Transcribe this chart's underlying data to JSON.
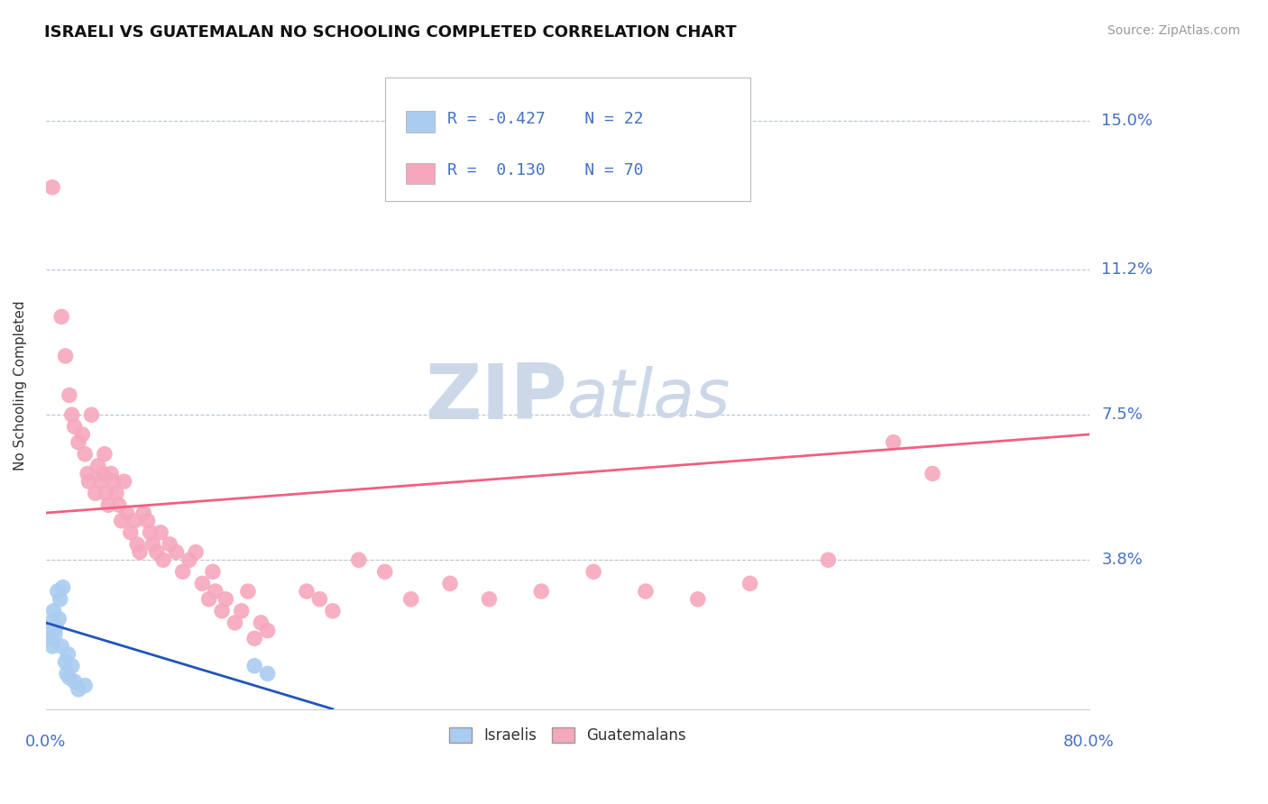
{
  "title": "ISRAELI VS GUATEMALAN NO SCHOOLING COMPLETED CORRELATION CHART",
  "source_text": "Source: ZipAtlas.com",
  "ylabel": "No Schooling Completed",
  "ytick_vals": [
    0.038,
    0.075,
    0.112,
    0.15
  ],
  "ytick_labels": [
    "3.8%",
    "7.5%",
    "11.2%",
    "15.0%"
  ],
  "xlim": [
    0.0,
    0.8
  ],
  "ylim": [
    0.0,
    0.165
  ],
  "legend_r_israeli": "-0.427",
  "legend_n_israeli": "22",
  "legend_r_guatemalan": "0.130",
  "legend_n_guatemalan": "70",
  "israeli_color": "#aaccf0",
  "guatemalan_color": "#f5a8bc",
  "israeli_line_color": "#2255bb",
  "guatemalan_line_color": "#f06080",
  "bg_color": "#ffffff",
  "watermark_color": "#ccd8e8",
  "israelis_dots": [
    [
      0.002,
      0.02
    ],
    [
      0.003,
      0.018
    ],
    [
      0.004,
      0.022
    ],
    [
      0.005,
      0.016
    ],
    [
      0.006,
      0.025
    ],
    [
      0.007,
      0.019
    ],
    [
      0.008,
      0.021
    ],
    [
      0.009,
      0.03
    ],
    [
      0.01,
      0.023
    ],
    [
      0.011,
      0.028
    ],
    [
      0.012,
      0.016
    ],
    [
      0.013,
      0.031
    ],
    [
      0.015,
      0.012
    ],
    [
      0.016,
      0.009
    ],
    [
      0.017,
      0.014
    ],
    [
      0.018,
      0.008
    ],
    [
      0.02,
      0.011
    ],
    [
      0.022,
      0.007
    ],
    [
      0.025,
      0.005
    ],
    [
      0.03,
      0.006
    ],
    [
      0.16,
      0.011
    ],
    [
      0.17,
      0.009
    ]
  ],
  "guatemalans_dots": [
    [
      0.005,
      0.133
    ],
    [
      0.012,
      0.1
    ],
    [
      0.015,
      0.09
    ],
    [
      0.018,
      0.08
    ],
    [
      0.02,
      0.075
    ],
    [
      0.022,
      0.072
    ],
    [
      0.025,
      0.068
    ],
    [
      0.028,
      0.07
    ],
    [
      0.03,
      0.065
    ],
    [
      0.032,
      0.06
    ],
    [
      0.033,
      0.058
    ],
    [
      0.035,
      0.075
    ],
    [
      0.038,
      0.055
    ],
    [
      0.04,
      0.062
    ],
    [
      0.042,
      0.058
    ],
    [
      0.044,
      0.06
    ],
    [
      0.045,
      0.065
    ],
    [
      0.046,
      0.055
    ],
    [
      0.048,
      0.052
    ],
    [
      0.05,
      0.06
    ],
    [
      0.052,
      0.058
    ],
    [
      0.054,
      0.055
    ],
    [
      0.056,
      0.052
    ],
    [
      0.058,
      0.048
    ],
    [
      0.06,
      0.058
    ],
    [
      0.062,
      0.05
    ],
    [
      0.065,
      0.045
    ],
    [
      0.068,
      0.048
    ],
    [
      0.07,
      0.042
    ],
    [
      0.072,
      0.04
    ],
    [
      0.075,
      0.05
    ],
    [
      0.078,
      0.048
    ],
    [
      0.08,
      0.045
    ],
    [
      0.082,
      0.042
    ],
    [
      0.085,
      0.04
    ],
    [
      0.088,
      0.045
    ],
    [
      0.09,
      0.038
    ],
    [
      0.095,
      0.042
    ],
    [
      0.1,
      0.04
    ],
    [
      0.105,
      0.035
    ],
    [
      0.11,
      0.038
    ],
    [
      0.115,
      0.04
    ],
    [
      0.12,
      0.032
    ],
    [
      0.125,
      0.028
    ],
    [
      0.128,
      0.035
    ],
    [
      0.13,
      0.03
    ],
    [
      0.135,
      0.025
    ],
    [
      0.138,
      0.028
    ],
    [
      0.145,
      0.022
    ],
    [
      0.15,
      0.025
    ],
    [
      0.155,
      0.03
    ],
    [
      0.16,
      0.018
    ],
    [
      0.165,
      0.022
    ],
    [
      0.17,
      0.02
    ],
    [
      0.2,
      0.03
    ],
    [
      0.21,
      0.028
    ],
    [
      0.22,
      0.025
    ],
    [
      0.24,
      0.038
    ],
    [
      0.26,
      0.035
    ],
    [
      0.28,
      0.028
    ],
    [
      0.31,
      0.032
    ],
    [
      0.34,
      0.028
    ],
    [
      0.38,
      0.03
    ],
    [
      0.42,
      0.035
    ],
    [
      0.46,
      0.03
    ],
    [
      0.5,
      0.028
    ],
    [
      0.54,
      0.032
    ],
    [
      0.6,
      0.038
    ],
    [
      0.65,
      0.068
    ],
    [
      0.68,
      0.06
    ]
  ],
  "israeli_trend": [
    0.0,
    0.22
  ],
  "guatemalan_trend": [
    0.0,
    0.8
  ]
}
